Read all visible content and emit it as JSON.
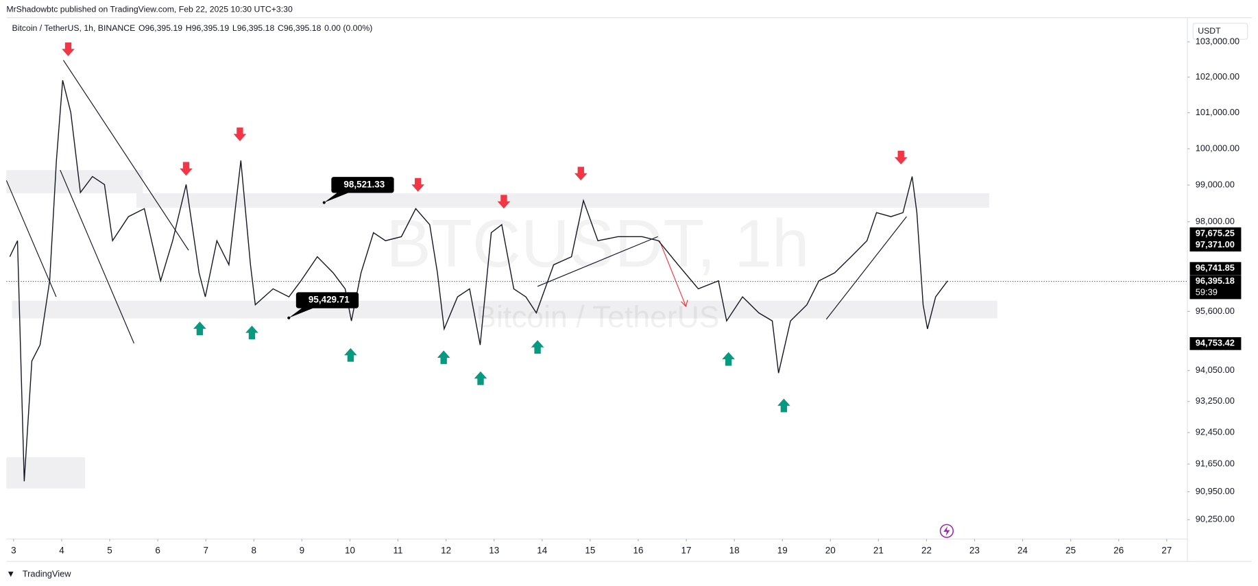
{
  "header": {
    "publisher": "MrShadowbtc published on TradingView.com, Feb 22, 2025 10:30 UTC+3:30",
    "symbol": "Bitcoin / TetherUS, 1h, BINANCE",
    "ohlc": [
      "O96,395.19",
      "H96,395.19",
      "L96,395.18",
      "C96,395.18",
      "0.00 (0.00%)"
    ]
  },
  "chart_data": {
    "type": "line",
    "color": "#131722",
    "log_scale": true,
    "grid": false,
    "currency": "USDT",
    "watermark": "BTCUSDT, 1h",
    "watermark_sub": "Bitcoin / TetherUS",
    "x": [
      2.92,
      3.08,
      3.22,
      3.38,
      3.55,
      3.75,
      3.89,
      4.02,
      4.19,
      4.39,
      4.64,
      4.89,
      5.06,
      5.39,
      5.72,
      6.06,
      6.31,
      6.59,
      6.86,
      6.99,
      7.23,
      7.48,
      7.73,
      7.93,
      8.03,
      8.4,
      8.73,
      8.98,
      9.32,
      9.65,
      9.9,
      10.03,
      10.23,
      10.49,
      10.74,
      11.07,
      11.37,
      11.66,
      11.82,
      11.96,
      12.24,
      12.49,
      12.71,
      12.94,
      13.16,
      13.41,
      13.66,
      13.88,
      14.24,
      14.61,
      14.86,
      15.16,
      15.58,
      16.08,
      16.42,
      16.83,
      17.25,
      17.67,
      17.84,
      18.17,
      18.51,
      18.79,
      18.92,
      19.17,
      19.51,
      19.76,
      20.09,
      20.43,
      20.76,
      20.96,
      21.26,
      21.51,
      21.7,
      21.8,
      21.93,
      22.02,
      22.19,
      22.44
    ],
    "values": [
      97057,
      97488,
      91213,
      94299,
      94718,
      96413,
      99674,
      101909,
      101010,
      98794,
      99233,
      99013,
      97488,
      98139,
      98357,
      96413,
      97488,
      99013,
      96628,
      95987,
      97488,
      96842,
      99674,
      96842,
      95775,
      96200,
      95987,
      96413,
      97057,
      96628,
      96200,
      95350,
      96628,
      97705,
      97488,
      97597,
      98357,
      97921,
      96628,
      95139,
      95987,
      96200,
      94718,
      97705,
      97921,
      96200,
      95987,
      95562,
      96842,
      97057,
      98575,
      97488,
      97597,
      97597,
      97488,
      96842,
      96200,
      96413,
      95350,
      95987,
      95562,
      95350,
      93985,
      95350,
      95775,
      96413,
      96628,
      97057,
      97488,
      98248,
      98139,
      98248,
      99233,
      98248,
      95775,
      95139,
      95987,
      96413
    ],
    "xlim": [
      2.85,
      27.43
    ],
    "xticks": [
      3,
      4,
      5,
      6,
      7,
      8,
      9,
      10,
      11,
      12,
      13,
      14,
      15,
      16,
      17,
      18,
      19,
      20,
      21,
      22,
      23,
      24,
      25,
      26,
      27
    ],
    "ylim": [
      89770,
      103690
    ],
    "yticks": [
      {
        "value": 103000,
        "label": "103,000.00"
      },
      {
        "value": 102000,
        "label": "102,000.00"
      },
      {
        "value": 101000,
        "label": "101,000.00"
      },
      {
        "value": 100000,
        "label": "100,000.00"
      },
      {
        "value": 99000,
        "label": "99,000.00"
      },
      {
        "value": 98000,
        "label": "98,000.00"
      },
      {
        "value": 95600,
        "label": "95,600.00"
      },
      {
        "value": 94050,
        "label": "94,050.00"
      },
      {
        "value": 93250,
        "label": "93,250.00"
      },
      {
        "value": 92450,
        "label": "92,450.00"
      },
      {
        "value": 91650,
        "label": "91,650.00"
      },
      {
        "value": 90950,
        "label": "90,950.00"
      },
      {
        "value": 90250,
        "label": "90,250.00"
      }
    ],
    "price_labels": [
      {
        "value": 97675.25,
        "label": "97,675.25"
      },
      {
        "value": 97371.0,
        "label": "97,371.00"
      },
      {
        "value": 96741.85,
        "label": "96,741.85"
      },
      {
        "value": 96395.18,
        "label": "96,395.18"
      },
      {
        "value": 94753.42,
        "label": "94,753.42"
      }
    ],
    "countdown": "59:39",
    "callouts": [
      {
        "value": 98521.33,
        "label": "98,521.33"
      },
      {
        "value": 95429.71,
        "label": "95,429.71"
      }
    ]
  },
  "footer": {
    "brand": "TradingView"
  }
}
